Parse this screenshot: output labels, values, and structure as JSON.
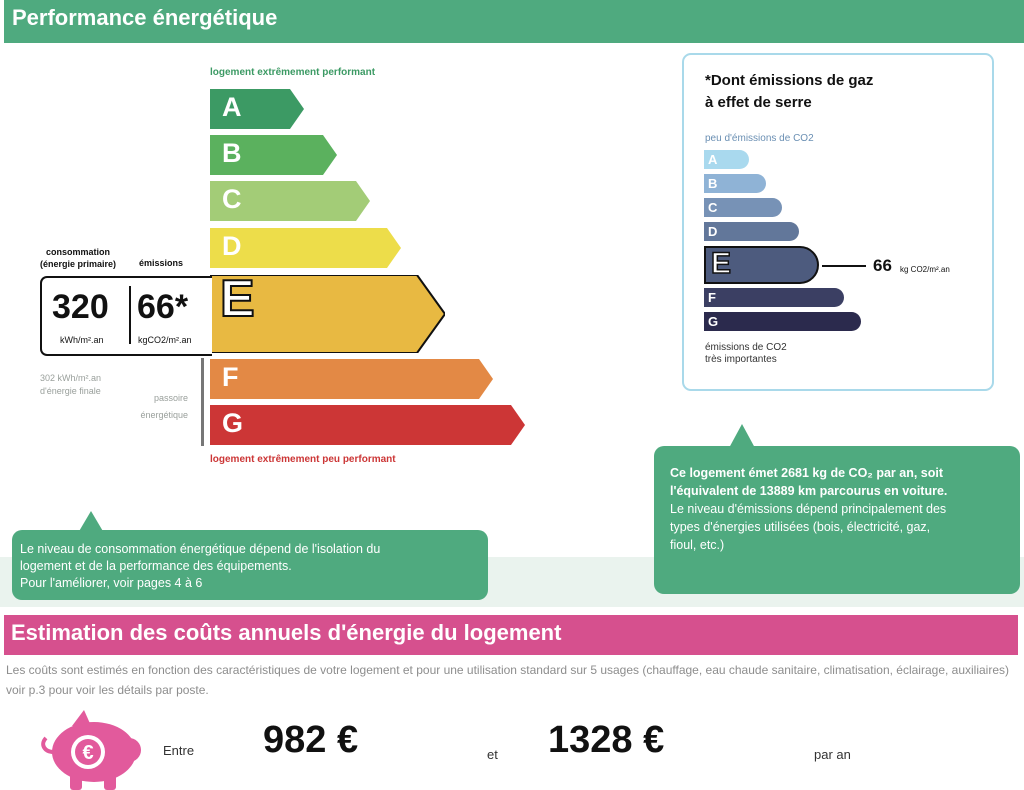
{
  "header": {
    "title": "Performance énergétique"
  },
  "scale": {
    "top_label": "logement extrêmement performant",
    "bottom_label": "logement extrêmement peu performant",
    "classes": [
      {
        "letter": "A",
        "color": "#3c9a64"
      },
      {
        "letter": "B",
        "color": "#5bb15e"
      },
      {
        "letter": "C",
        "color": "#a3cc77"
      },
      {
        "letter": "D",
        "color": "#eddd4a"
      },
      {
        "letter": "E",
        "color": "#e8b942"
      },
      {
        "letter": "F",
        "color": "#e38945"
      },
      {
        "letter": "G",
        "color": "#cc3636"
      }
    ],
    "current_class": "E"
  },
  "consumption": {
    "header_label_line1": "consommation",
    "header_label_line2": "(énergie primaire)",
    "emissions_header": "émissions",
    "value": "320",
    "unit": "kWh/m².an",
    "emissions_value": "66*",
    "emissions_unit": "kgCO2/m².an",
    "final_energy_line1": "302 kWh/m².an",
    "final_energy_line2": "d'énergie finale",
    "passoire_line1": "passoire",
    "passoire_line2": "énergétique"
  },
  "co2": {
    "title_line1": "*Dont émissions de gaz",
    "title_line2": "à effet de serre",
    "top_label": "peu d'émissions de CO2",
    "bottom_label_line1": "émissions de CO2",
    "bottom_label_line2": "très importantes",
    "classes": [
      {
        "letter": "A",
        "color": "#a9d9ee"
      },
      {
        "letter": "B",
        "color": "#8fb3d6"
      },
      {
        "letter": "C",
        "color": "#7792b6"
      },
      {
        "letter": "D",
        "color": "#62779a"
      },
      {
        "letter": "E",
        "color": "#4d5b7e"
      },
      {
        "letter": "F",
        "color": "#3b3f63"
      },
      {
        "letter": "G",
        "color": "#2b2a4d"
      }
    ],
    "current_class": "E",
    "value": "66",
    "value_unit": "kg CO2/m².an"
  },
  "callout_left": {
    "line1": "Le niveau de consommation énergétique dépend de l'isolation du",
    "line2": "logement et de la performance des équipements.",
    "line3": "Pour l'améliorer, voir pages 4 à 6"
  },
  "callout_right": {
    "bold_line1": "Ce logement émet 2681 kg de CO₂ par an, soit",
    "bold_line2": "l'équivalent de 13889  km parcourus en voiture.",
    "line3": "Le niveau d'émissions dépend principalement des",
    "line4": "types d'énergies utilisées (bois, électricité, gaz,",
    "line5": "fioul, etc.)"
  },
  "costs": {
    "title": "Estimation des coûts annuels d'énergie du logement",
    "description": "Les coûts sont estimés en fonction des caractéristiques de votre logement et pour une utilisation standard sur 5 usages (chauffage, eau chaude sanitaire, climatisation, éclairage, auxiliaires) voir p.3 pour voir les détails par poste.",
    "between_label": "Entre",
    "min_value": "982 €",
    "and_label": "et",
    "max_value": "1328 €",
    "per_year_label": "par an",
    "icon_symbol": "€",
    "icon": "piggy-bank-icon"
  }
}
